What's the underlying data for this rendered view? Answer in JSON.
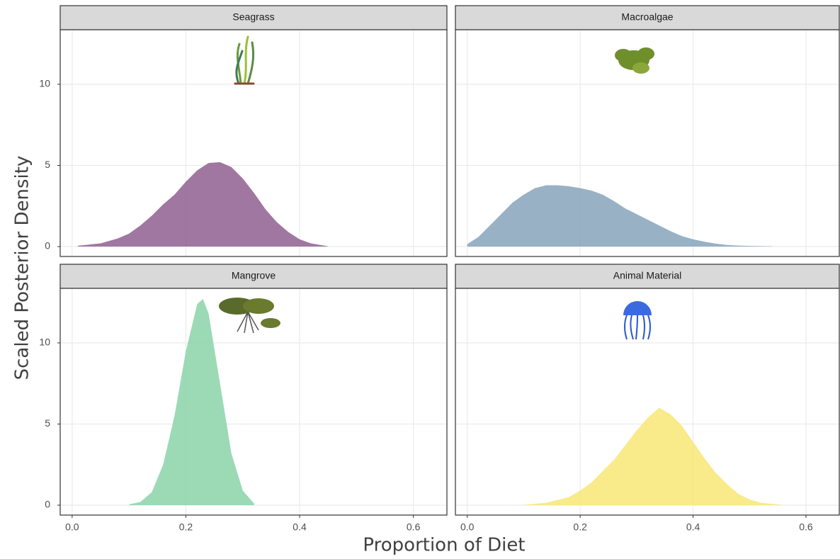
{
  "chart_data": {
    "type": "area",
    "x_label": "Proportion of Diet",
    "y_label": "Scaled Posterior Density",
    "xlim": [
      -0.021,
      0.659
    ],
    "ylim": [
      -0.61,
      13.36
    ],
    "xticks": [
      {
        "value": 0,
        "label": "0.0"
      },
      {
        "value": 0.2,
        "label": "0.2"
      },
      {
        "value": 0.4,
        "label": "0.4"
      },
      {
        "value": 0.6,
        "label": "0.6"
      }
    ],
    "yticks": [
      0,
      5,
      10
    ],
    "grid": true,
    "panels": [
      {
        "title": "Seagrass",
        "color": "#8f5f90",
        "x": [
          0.01,
          0.05,
          0.08,
          0.1,
          0.12,
          0.14,
          0.16,
          0.18,
          0.2,
          0.22,
          0.24,
          0.26,
          0.28,
          0.3,
          0.32,
          0.34,
          0.36,
          0.38,
          0.4,
          0.42,
          0.44,
          0.45
        ],
        "values": [
          0.05,
          0.2,
          0.5,
          0.8,
          1.3,
          1.9,
          2.6,
          3.2,
          4.0,
          4.7,
          5.15,
          5.2,
          4.9,
          4.2,
          3.3,
          2.3,
          1.5,
          0.9,
          0.45,
          0.2,
          0.08,
          0.02
        ]
      },
      {
        "title": "Macroalgae",
        "color": "#86a3bb",
        "x": [
          0.0,
          0.02,
          0.04,
          0.06,
          0.08,
          0.1,
          0.12,
          0.14,
          0.16,
          0.18,
          0.2,
          0.22,
          0.24,
          0.26,
          0.28,
          0.3,
          0.32,
          0.34,
          0.36,
          0.38,
          0.4,
          0.42,
          0.44,
          0.46,
          0.48,
          0.5,
          0.54
        ],
        "values": [
          0.15,
          0.6,
          1.3,
          2.0,
          2.7,
          3.2,
          3.6,
          3.78,
          3.78,
          3.72,
          3.6,
          3.45,
          3.2,
          2.8,
          2.35,
          2.0,
          1.65,
          1.3,
          0.95,
          0.65,
          0.45,
          0.3,
          0.18,
          0.1,
          0.06,
          0.04,
          0.02
        ]
      },
      {
        "title": "Mangrove",
        "color": "#8ad4a8",
        "x": [
          0.1,
          0.12,
          0.14,
          0.16,
          0.18,
          0.2,
          0.22,
          0.23,
          0.24,
          0.26,
          0.28,
          0.3,
          0.32
        ],
        "values": [
          0.05,
          0.2,
          0.8,
          2.5,
          5.5,
          9.5,
          12.4,
          12.7,
          11.8,
          7.5,
          3.2,
          0.9,
          0.1
        ]
      },
      {
        "title": "Animal Material",
        "color": "#f8e675",
        "x": [
          0.1,
          0.14,
          0.18,
          0.2,
          0.22,
          0.24,
          0.26,
          0.28,
          0.3,
          0.32,
          0.34,
          0.36,
          0.38,
          0.4,
          0.42,
          0.44,
          0.46,
          0.48,
          0.5,
          0.52,
          0.555
        ],
        "values": [
          0.02,
          0.15,
          0.5,
          0.9,
          1.4,
          2.1,
          2.8,
          3.7,
          4.6,
          5.4,
          6.0,
          5.6,
          4.9,
          3.9,
          2.9,
          2.0,
          1.3,
          0.7,
          0.35,
          0.15,
          0.03
        ]
      }
    ]
  }
}
